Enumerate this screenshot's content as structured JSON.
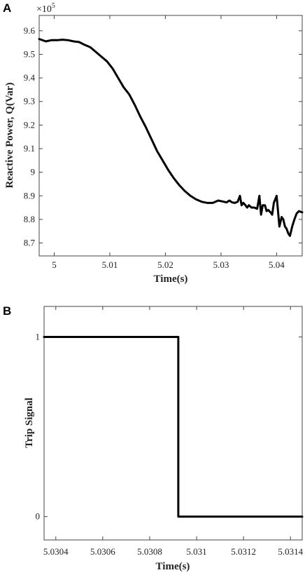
{
  "chart_data": [
    {
      "panel_label": "A",
      "type": "line",
      "xlabel": "Time(s)",
      "ylabel": "Reactive Power, Q(Var)",
      "exponent_label": "×10",
      "exponent_power": "5",
      "xlim": [
        4.9973,
        5.0446
      ],
      "ylim": [
        8.645,
        9.665
      ],
      "xticks": [
        5,
        5.01,
        5.02,
        5.03,
        5.04
      ],
      "xtick_labels": [
        "5",
        "5.01",
        "5.02",
        "5.03",
        "5.04"
      ],
      "yticks": [
        8.7,
        8.8,
        8.9,
        9,
        9.1,
        9.2,
        9.3,
        9.4,
        9.5,
        9.6
      ],
      "ytick_labels": [
        "8.7",
        "8.8",
        "8.9",
        "9",
        "9.1",
        "9.2",
        "9.3",
        "9.4",
        "9.5",
        "9.6"
      ],
      "grid": false,
      "x": [
        4.9973,
        4.9985,
        4.9995,
        5.0005,
        5.0015,
        5.0025,
        5.0035,
        5.0045,
        5.0055,
        5.0065,
        5.0075,
        5.0085,
        5.0095,
        5.0105,
        5.0115,
        5.0125,
        5.0135,
        5.0145,
        5.0155,
        5.0165,
        5.0175,
        5.0185,
        5.0195,
        5.0205,
        5.0215,
        5.0225,
        5.0235,
        5.0245,
        5.0255,
        5.0265,
        5.0275,
        5.0285,
        5.0295,
        5.0305,
        5.031,
        5.0315,
        5.032,
        5.0325,
        5.033,
        5.0334,
        5.0337,
        5.034,
        5.0344,
        5.0347,
        5.035,
        5.0355,
        5.036,
        5.0365,
        5.0369,
        5.0372,
        5.0375,
        5.0379,
        5.0382,
        5.0385,
        5.0389,
        5.0392,
        5.0395,
        5.04,
        5.0405,
        5.0409,
        5.0412,
        5.0415,
        5.0418,
        5.0421,
        5.0424,
        5.0428,
        5.0432,
        5.0436,
        5.044,
        5.0446
      ],
      "y": [
        9.565,
        9.555,
        9.56,
        9.56,
        9.562,
        9.56,
        9.555,
        9.552,
        9.54,
        9.53,
        9.51,
        9.49,
        9.47,
        9.44,
        9.4,
        9.36,
        9.33,
        9.285,
        9.235,
        9.19,
        9.14,
        9.09,
        9.05,
        9.01,
        8.975,
        8.945,
        8.92,
        8.9,
        8.885,
        8.875,
        8.87,
        8.87,
        8.88,
        8.875,
        8.872,
        8.88,
        8.872,
        8.87,
        8.875,
        8.9,
        8.86,
        8.87,
        8.86,
        8.85,
        8.86,
        8.85,
        8.85,
        8.845,
        8.9,
        8.82,
        8.86,
        8.86,
        8.835,
        8.84,
        8.83,
        8.82,
        8.87,
        8.9,
        8.77,
        8.81,
        8.8,
        8.77,
        8.76,
        8.74,
        8.73,
        8.77,
        8.8,
        8.825,
        8.835,
        8.83
      ]
    },
    {
      "panel_label": "B",
      "type": "line",
      "xlabel": "Time(s)",
      "ylabel": "Trip Signal",
      "xlim": [
        5.03035,
        5.03145
      ],
      "ylim": [
        -0.13,
        1.17
      ],
      "xticks": [
        5.0304,
        5.0306,
        5.0308,
        5.031,
        5.0312,
        5.0314
      ],
      "xtick_labels": [
        "5.0304",
        "5.0306",
        "5.0308",
        "5.031",
        "5.0312",
        "5.0314"
      ],
      "yticks": [
        0,
        1
      ],
      "ytick_labels": [
        "0",
        "1"
      ],
      "grid": false,
      "x": [
        5.03035,
        5.030922,
        5.030922,
        5.03145
      ],
      "y": [
        1,
        1,
        0,
        0
      ]
    }
  ]
}
